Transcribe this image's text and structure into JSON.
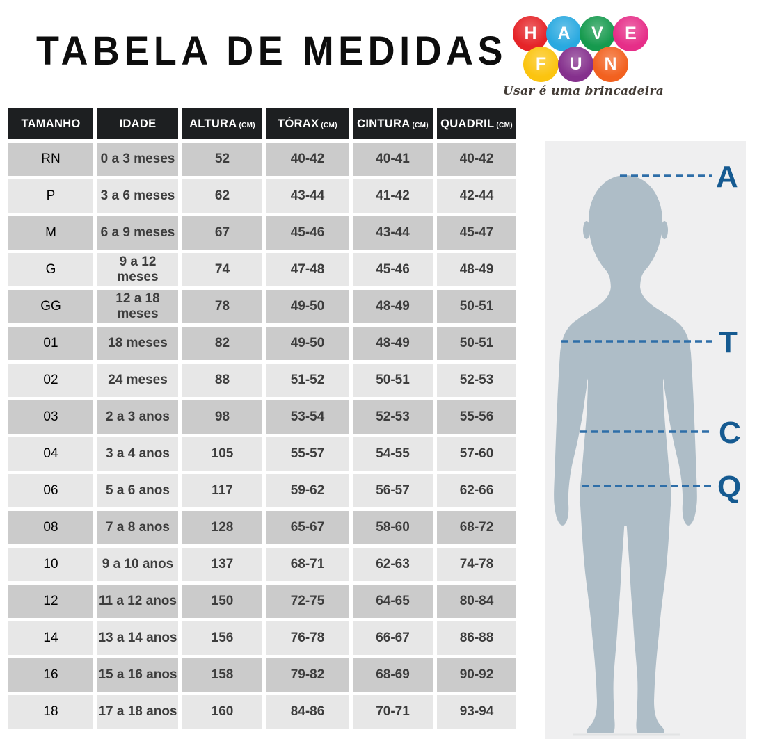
{
  "title": "TABELA DE MEDIDAS",
  "logo": {
    "brand_letters_row1": [
      {
        "letter": "H",
        "color": "#e52428"
      },
      {
        "letter": "A",
        "color": "#29a9e0"
      },
      {
        "letter": "V",
        "color": "#169a4e"
      },
      {
        "letter": "E",
        "color": "#e62e88"
      }
    ],
    "brand_letters_row2": [
      {
        "letter": "F",
        "color": "#fbc40f"
      },
      {
        "letter": "U",
        "color": "#85308d"
      },
      {
        "letter": "N",
        "color": "#f2611f"
      }
    ],
    "tagline": "Usar é uma brincadeira"
  },
  "table": {
    "columns": [
      {
        "key": "tamanho",
        "label": "TAMANHO",
        "unit": ""
      },
      {
        "key": "idade",
        "label": "IDADE",
        "unit": ""
      },
      {
        "key": "altura",
        "label": "ALTURA",
        "unit": "(CM)"
      },
      {
        "key": "torax",
        "label": "TÓRAX",
        "unit": "(CM)"
      },
      {
        "key": "cintura",
        "label": "CINTURA",
        "unit": "(CM)"
      },
      {
        "key": "quadril",
        "label": "QUADRIL",
        "unit": "(CM)"
      }
    ],
    "rows": [
      {
        "tamanho": "RN",
        "idade": "0 a 3 meses",
        "altura": "52",
        "torax": "40-42",
        "cintura": "40-41",
        "quadril": "40-42",
        "shade": "dark"
      },
      {
        "tamanho": "P",
        "idade": "3 a 6 meses",
        "altura": "62",
        "torax": "43-44",
        "cintura": "41-42",
        "quadril": "42-44",
        "shade": "light"
      },
      {
        "tamanho": "M",
        "idade": "6 a 9 meses",
        "altura": "67",
        "torax": "45-46",
        "cintura": "43-44",
        "quadril": "45-47",
        "shade": "dark"
      },
      {
        "tamanho": "G",
        "idade": "9 a 12 meses",
        "altura": "74",
        "torax": "47-48",
        "cintura": "45-46",
        "quadril": "48-49",
        "shade": "light"
      },
      {
        "tamanho": "GG",
        "idade": "12 a 18 meses",
        "altura": "78",
        "torax": "49-50",
        "cintura": "48-49",
        "quadril": "50-51",
        "shade": "dark"
      },
      {
        "tamanho": "01",
        "idade": "18 meses",
        "altura": "82",
        "torax": "49-50",
        "cintura": "48-49",
        "quadril": "50-51",
        "shade": "dark"
      },
      {
        "tamanho": "02",
        "idade": "24 meses",
        "altura": "88",
        "torax": "51-52",
        "cintura": "50-51",
        "quadril": "52-53",
        "shade": "light"
      },
      {
        "tamanho": "03",
        "idade": "2 a 3 anos",
        "altura": "98",
        "torax": "53-54",
        "cintura": "52-53",
        "quadril": "55-56",
        "shade": "dark"
      },
      {
        "tamanho": "04",
        "idade": "3 a 4 anos",
        "altura": "105",
        "torax": "55-57",
        "cintura": "54-55",
        "quadril": "57-60",
        "shade": "light"
      },
      {
        "tamanho": "06",
        "idade": "5 a 6 anos",
        "altura": "117",
        "torax": "59-62",
        "cintura": "56-57",
        "quadril": "62-66",
        "shade": "light"
      },
      {
        "tamanho": "08",
        "idade": "7 a 8 anos",
        "altura": "128",
        "torax": "65-67",
        "cintura": "58-60",
        "quadril": "68-72",
        "shade": "dark"
      },
      {
        "tamanho": "10",
        "idade": "9 a 10 anos",
        "altura": "137",
        "torax": "68-71",
        "cintura": "62-63",
        "quadril": "74-78",
        "shade": "light"
      },
      {
        "tamanho": "12",
        "idade": "11 a 12 anos",
        "altura": "150",
        "torax": "72-75",
        "cintura": "64-65",
        "quadril": "80-84",
        "shade": "dark"
      },
      {
        "tamanho": "14",
        "idade": "13 a 14 anos",
        "altura": "156",
        "torax": "76-78",
        "cintura": "66-67",
        "quadril": "86-88",
        "shade": "light"
      },
      {
        "tamanho": "16",
        "idade": "15 a 16 anos",
        "altura": "158",
        "torax": "79-82",
        "cintura": "68-69",
        "quadril": "90-92",
        "shade": "dark"
      },
      {
        "tamanho": "18",
        "idade": "17 a 18 anos",
        "altura": "160",
        "torax": "84-86",
        "cintura": "70-71",
        "quadril": "93-94",
        "shade": "light"
      }
    ]
  },
  "figure": {
    "markers": [
      "A",
      "T",
      "C",
      "Q"
    ]
  },
  "colors": {
    "header_bg": "#1d1f21",
    "row_dark": "#cbcbcb",
    "row_light": "#e7e7e7",
    "panel_bg": "#efeff0",
    "silhouette": "#aebdc7",
    "measure_line": "#2e6ea8",
    "marker_letter": "#155a91"
  }
}
